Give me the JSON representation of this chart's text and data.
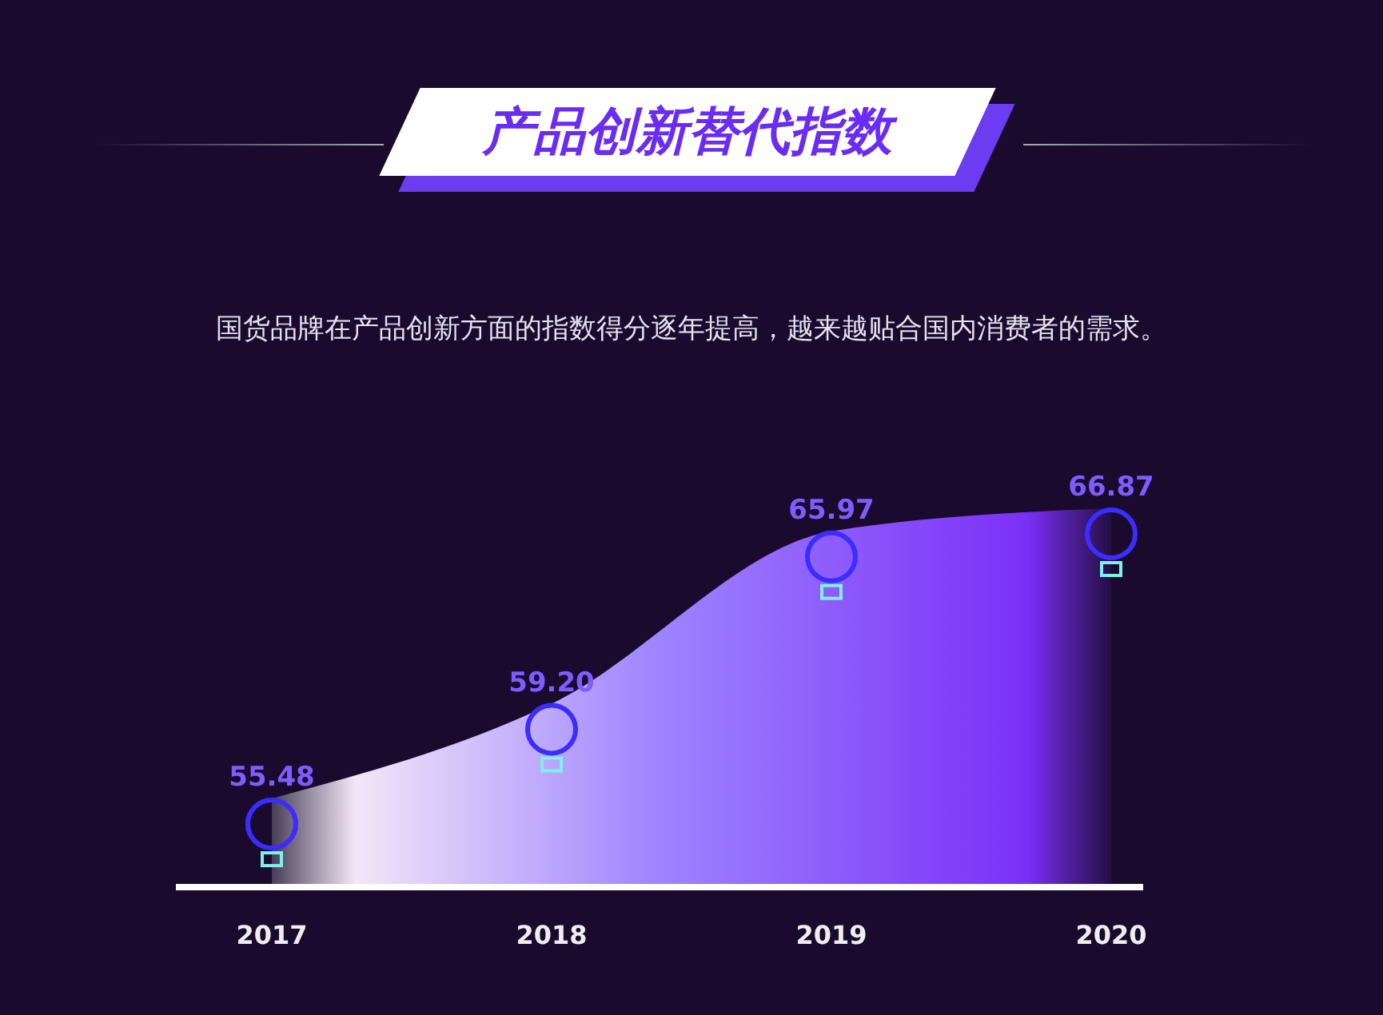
{
  "chart_data": {
    "type": "area",
    "title": "产品创新替代指数",
    "subtitle": "国货品牌在产品创新方面的指数得分逐年提高，越来越贴合国内消费者的需求。",
    "categories": [
      "2017",
      "2018",
      "2019",
      "2020"
    ],
    "values": [
      55.48,
      59.2,
      65.97,
      66.87
    ],
    "value_labels": [
      "55.48",
      "59.20",
      "65.97",
      "66.87"
    ],
    "color": "#7b2ff7",
    "tick_labels": "x"
  }
}
